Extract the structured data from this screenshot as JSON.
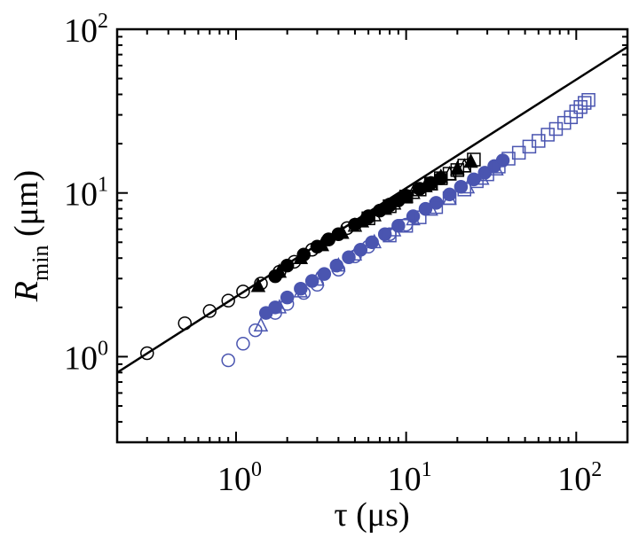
{
  "chart_data": {
    "type": "scatter",
    "title": "",
    "xlabel": "τ (μs)",
    "ylabel": {
      "symbol": "R",
      "subscript": "min",
      "unit": " (μm)"
    },
    "x_scale": "log",
    "y_scale": "log",
    "xlim": [
      0.2,
      200
    ],
    "ylim": [
      0.3,
      100
    ],
    "x_ticks": [
      {
        "value": 1,
        "base": "10",
        "exp": "0"
      },
      {
        "value": 10,
        "base": "10",
        "exp": "1"
      },
      {
        "value": 100,
        "base": "10",
        "exp": "2"
      }
    ],
    "y_ticks": [
      {
        "value": 1,
        "base": "10",
        "exp": "0"
      },
      {
        "value": 10,
        "base": "10",
        "exp": "1"
      },
      {
        "value": 100,
        "base": "10",
        "exp": "2"
      }
    ],
    "grid": false,
    "legend": "none",
    "colors": {
      "black": "#000000",
      "blue": "#4a55b0"
    },
    "fit_line": {
      "color": "#000000",
      "points": [
        [
          0.2,
          0.8
        ],
        [
          200,
          78
        ]
      ]
    },
    "series": [
      {
        "color": "#000000",
        "marker": "open-circle",
        "points": [
          [
            0.3,
            1.05
          ],
          [
            0.5,
            1.6
          ],
          [
            0.7,
            1.9
          ],
          [
            0.9,
            2.2
          ],
          [
            1.1,
            2.5
          ],
          [
            1.4,
            2.8
          ],
          [
            1.8,
            3.3
          ],
          [
            2.2,
            3.8
          ],
          [
            2.8,
            4.5
          ],
          [
            3.5,
            5.2
          ],
          [
            4.5,
            6.1
          ],
          [
            6,
            7.2
          ],
          [
            8,
            8.5
          ],
          [
            10,
            9.6
          ]
        ]
      },
      {
        "color": "#000000",
        "marker": "filled-circle",
        "points": [
          [
            1.7,
            3.1
          ],
          [
            2,
            3.6
          ],
          [
            2.5,
            4.2
          ],
          [
            3,
            4.7
          ],
          [
            3.5,
            5.2
          ],
          [
            4,
            5.6
          ],
          [
            5,
            6.4
          ],
          [
            6,
            7.1
          ],
          [
            7,
            7.8
          ],
          [
            8,
            8.4
          ],
          [
            9,
            9
          ],
          [
            10,
            9.6
          ],
          [
            12,
            10.6
          ],
          [
            14,
            11.5
          ],
          [
            16,
            12.3
          ]
        ]
      },
      {
        "color": "#000000",
        "marker": "filled-triangle",
        "points": [
          [
            1.35,
            2.7
          ],
          [
            1.8,
            3.3
          ],
          [
            2.4,
            4.0
          ],
          [
            3.2,
            4.8
          ],
          [
            4.2,
            5.7
          ],
          [
            5.5,
            6.7
          ],
          [
            7.5,
            8
          ],
          [
            10,
            9.5
          ],
          [
            13,
            11
          ],
          [
            16,
            12.5
          ],
          [
            20,
            14
          ],
          [
            24,
            15.5
          ]
        ]
      },
      {
        "color": "#000000",
        "marker": "open-square",
        "points": [
          [
            6,
            7
          ],
          [
            8,
            8.3
          ],
          [
            10,
            9.5
          ],
          [
            12,
            10.5
          ],
          [
            14,
            11.4
          ],
          [
            16,
            12.3
          ],
          [
            18,
            13.1
          ],
          [
            20,
            13.8
          ],
          [
            22,
            14.7
          ],
          [
            25,
            16
          ]
        ]
      },
      {
        "color": "#000000",
        "marker": "open-triangle",
        "points": [
          [
            5,
            6.3
          ],
          [
            6.5,
            7.3
          ],
          [
            8.5,
            8.6
          ],
          [
            11,
            10
          ],
          [
            14,
            11.3
          ],
          [
            18,
            13
          ],
          [
            22,
            14.5
          ]
        ]
      },
      {
        "color": "#4a55b0",
        "marker": "open-circle",
        "points": [
          [
            0.9,
            0.95
          ],
          [
            1.1,
            1.2
          ],
          [
            1.3,
            1.45
          ],
          [
            1.7,
            1.85
          ],
          [
            2,
            2.1
          ],
          [
            2.5,
            2.45
          ],
          [
            3,
            2.75
          ],
          [
            4,
            3.4
          ],
          [
            5,
            4.1
          ],
          [
            6,
            4.7
          ],
          [
            8,
            5.6
          ],
          [
            10,
            6.4
          ]
        ]
      },
      {
        "color": "#4a55b0",
        "marker": "filled-circle",
        "points": [
          [
            1.5,
            1.85
          ],
          [
            1.7,
            2
          ],
          [
            2,
            2.3
          ],
          [
            2.4,
            2.6
          ],
          [
            2.8,
            2.9
          ],
          [
            3.3,
            3.2
          ],
          [
            3.9,
            3.6
          ],
          [
            4.6,
            4.05
          ],
          [
            5.4,
            4.5
          ],
          [
            6.3,
            5
          ],
          [
            7.5,
            5.6
          ],
          [
            9,
            6.3
          ],
          [
            11,
            7.2
          ],
          [
            13,
            8
          ],
          [
            15,
            8.7
          ],
          [
            18,
            9.8
          ],
          [
            21,
            10.9
          ],
          [
            25,
            12.1
          ],
          [
            29,
            13.3
          ],
          [
            33,
            14.6
          ],
          [
            37,
            15.8
          ]
        ]
      },
      {
        "color": "#4a55b0",
        "marker": "open-triangle",
        "points": [
          [
            1.4,
            1.55
          ],
          [
            1.8,
            2.0
          ],
          [
            2.4,
            2.5
          ],
          [
            3,
            2.95
          ],
          [
            4,
            3.6
          ],
          [
            5,
            4.2
          ],
          [
            6.5,
            5
          ],
          [
            8.5,
            5.9
          ],
          [
            11,
            6.9
          ],
          [
            14,
            7.9
          ],
          [
            18,
            9.2
          ],
          [
            23,
            10.8
          ],
          [
            28,
            12.2
          ],
          [
            34,
            13.9
          ]
        ]
      },
      {
        "color": "#4a55b0",
        "marker": "open-square",
        "points": [
          [
            8,
            5.5
          ],
          [
            10,
            6.3
          ],
          [
            12,
            7.1
          ],
          [
            15,
            8.2
          ],
          [
            18,
            9.3
          ],
          [
            22,
            10.5
          ],
          [
            26,
            11.8
          ],
          [
            30,
            13
          ],
          [
            35,
            14.5
          ],
          [
            40,
            16.2
          ],
          [
            46,
            17.6
          ],
          [
            53,
            19.2
          ],
          [
            60,
            20.8
          ],
          [
            68,
            22.7
          ],
          [
            76,
            24.6
          ],
          [
            85,
            26.8
          ],
          [
            93,
            29
          ],
          [
            100,
            31.5
          ],
          [
            106,
            33.5
          ],
          [
            112,
            35.5
          ],
          [
            118,
            37
          ]
        ]
      }
    ]
  }
}
